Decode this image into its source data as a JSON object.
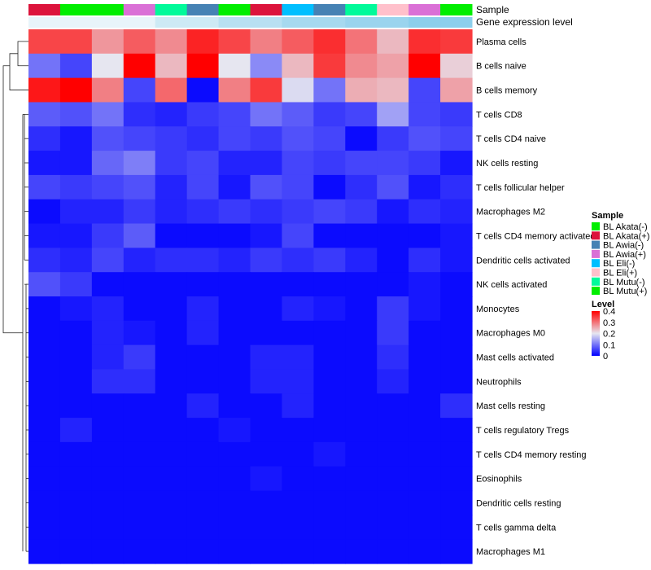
{
  "chart_data": {
    "type": "heatmap",
    "annotation_labels": [
      "Sample",
      "Gene expression level"
    ],
    "sample_legend_title": "Sample",
    "samples": [
      {
        "name": "BL Akata(-)",
        "color": "#00EE00"
      },
      {
        "name": "BL Akata(+)",
        "color": "#DC143C"
      },
      {
        "name": "BL Awia(-)",
        "color": "#4682B4"
      },
      {
        "name": "BL Awia(+)",
        "color": "#DA70D6"
      },
      {
        "name": "BL Eli(-)",
        "color": "#00BFFF"
      },
      {
        "name": "BL Eli(+)",
        "color": "#FFC0CB"
      },
      {
        "name": "BL Mutu(-)",
        "color": "#00FA9A"
      },
      {
        "name": "BL Mutu(+)",
        "color": "#00EE00"
      }
    ],
    "column_samples": [
      "BL Akata(+)",
      "BL Akata(-)",
      "BL Akata(-)",
      "BL Awia(+)",
      "BL Mutu(-)",
      "BL Awia(-)",
      "BL Akata(-)",
      "BL Akata(+)",
      "BL Eli(-)",
      "BL Awia(-)",
      "BL Mutu(-)",
      "BL Eli(+)",
      "BL Awia(+)",
      "BL Mutu(+)"
    ],
    "gene_expression_colors": [
      "#E8F4FA",
      "#E8F4FA",
      "#E8F4FA",
      "#E8F4FA",
      "#CDEAF5",
      "#CDEAF5",
      "#B8E0F2",
      "#B8E0F2",
      "#A6D9EF",
      "#A6D9EF",
      "#9AD4EE",
      "#9AD4EE",
      "#8CCFEC",
      "#8CCFEC"
    ],
    "rows": [
      "Plasma cells",
      "B cells naive",
      "B cells memory",
      "T cells CD8",
      "T cells CD4 naive",
      "NK cells resting",
      "T cells follicular helper",
      "Macrophages M2",
      "T cells CD4 memory activated",
      "Dendritic cells activated",
      "NK cells activated",
      "Monocytes",
      "Macrophages M0",
      "Mast cells activated",
      "Neutrophils",
      "Mast cells resting",
      "T cells regulatory  Tregs",
      "T cells CD4 memory resting",
      "Eosinophils",
      "Dendritic cells resting",
      "T cells gamma delta",
      "Macrophages M1"
    ],
    "values": [
      [
        0.34,
        0.34,
        0.27,
        0.32,
        0.28,
        0.37,
        0.34,
        0.29,
        0.32,
        0.36,
        0.3,
        0.24,
        0.36,
        0.35
      ],
      [
        0.1,
        0.06,
        0.2,
        0.4,
        0.24,
        0.4,
        0.2,
        0.12,
        0.24,
        0.35,
        0.28,
        0.26,
        0.4,
        0.22
      ],
      [
        0.38,
        0.4,
        0.29,
        0.06,
        0.31,
        0.01,
        0.29,
        0.35,
        0.19,
        0.1,
        0.25,
        0.24,
        0.06,
        0.26
      ],
      [
        0.08,
        0.07,
        0.1,
        0.04,
        0.03,
        0.05,
        0.06,
        0.1,
        0.08,
        0.05,
        0.06,
        0.14,
        0.06,
        0.05
      ],
      [
        0.04,
        0.02,
        0.07,
        0.06,
        0.05,
        0.04,
        0.06,
        0.05,
        0.07,
        0.06,
        0.01,
        0.05,
        0.07,
        0.06
      ],
      [
        0.02,
        0.02,
        0.09,
        0.11,
        0.05,
        0.06,
        0.03,
        0.03,
        0.06,
        0.05,
        0.06,
        0.06,
        0.05,
        0.02
      ],
      [
        0.06,
        0.05,
        0.06,
        0.07,
        0.03,
        0.06,
        0.02,
        0.07,
        0.06,
        0.01,
        0.04,
        0.07,
        0.02,
        0.04
      ],
      [
        0.01,
        0.03,
        0.03,
        0.05,
        0.03,
        0.04,
        0.05,
        0.04,
        0.05,
        0.06,
        0.05,
        0.02,
        0.04,
        0.03
      ],
      [
        0.02,
        0.02,
        0.05,
        0.08,
        0.01,
        0.01,
        0.01,
        0.02,
        0.06,
        0.01,
        0.01,
        0.01,
        0.01,
        0.02
      ],
      [
        0.04,
        0.03,
        0.06,
        0.03,
        0.04,
        0.04,
        0.03,
        0.05,
        0.04,
        0.05,
        0.03,
        0.01,
        0.04,
        0.02
      ],
      [
        0.07,
        0.05,
        0.01,
        0.01,
        0.01,
        0.01,
        0.01,
        0.01,
        0.01,
        0.01,
        0.01,
        0.01,
        0.02,
        0.01
      ],
      [
        0.01,
        0.02,
        0.03,
        0.01,
        0.01,
        0.03,
        0.01,
        0.01,
        0.03,
        0.02,
        0.01,
        0.05,
        0.02,
        0.01
      ],
      [
        0.01,
        0.01,
        0.03,
        0.02,
        0.01,
        0.03,
        0.01,
        0.01,
        0.01,
        0.01,
        0.01,
        0.05,
        0.01,
        0.01
      ],
      [
        0.01,
        0.01,
        0.03,
        0.05,
        0.01,
        0.01,
        0.01,
        0.03,
        0.03,
        0.01,
        0.01,
        0.04,
        0.01,
        0.01
      ],
      [
        0.01,
        0.01,
        0.04,
        0.04,
        0.01,
        0.01,
        0.01,
        0.03,
        0.03,
        0.01,
        0.01,
        0.03,
        0.01,
        0.01
      ],
      [
        0.01,
        0.01,
        0.01,
        0.01,
        0.01,
        0.03,
        0.01,
        0.01,
        0.03,
        0.01,
        0.01,
        0.01,
        0.01,
        0.04
      ],
      [
        0.01,
        0.03,
        0.01,
        0.01,
        0.01,
        0.01,
        0.02,
        0.01,
        0.01,
        0.01,
        0.01,
        0.01,
        0.01,
        0.01
      ],
      [
        0.01,
        0.01,
        0.01,
        0.01,
        0.01,
        0.01,
        0.01,
        0.01,
        0.01,
        0.02,
        0.01,
        0.01,
        0.01,
        0.01
      ],
      [
        0.01,
        0.01,
        0.01,
        0.01,
        0.01,
        0.01,
        0.01,
        0.02,
        0.01,
        0.01,
        0.01,
        0.01,
        0.01,
        0.01
      ],
      [
        0.01,
        0.01,
        0.01,
        0.01,
        0.01,
        0.01,
        0.01,
        0.01,
        0.01,
        0.01,
        0.01,
        0.01,
        0.01,
        0.01
      ],
      [
        0.01,
        0.01,
        0.01,
        0.01,
        0.01,
        0.01,
        0.01,
        0.01,
        0.01,
        0.01,
        0.01,
        0.01,
        0.01,
        0.01
      ],
      [
        0.01,
        0.01,
        0.01,
        0.01,
        0.01,
        0.01,
        0.01,
        0.01,
        0.01,
        0.01,
        0.01,
        0.01,
        0.01,
        0.01
      ]
    ],
    "color_scale": {
      "title": "Level",
      "min": 0,
      "max": 0.4,
      "ticks": [
        "0.4",
        "0.3",
        "0.2",
        "0.1",
        "0"
      ],
      "tick_values": [
        0.4,
        0.3,
        0.2,
        0.1,
        0
      ],
      "low_color": "#0000FF",
      "mid_color": "#E6E6F0",
      "high_color": "#FF0000",
      "midpoint": 0.2
    },
    "row_dendrogram": true
  }
}
